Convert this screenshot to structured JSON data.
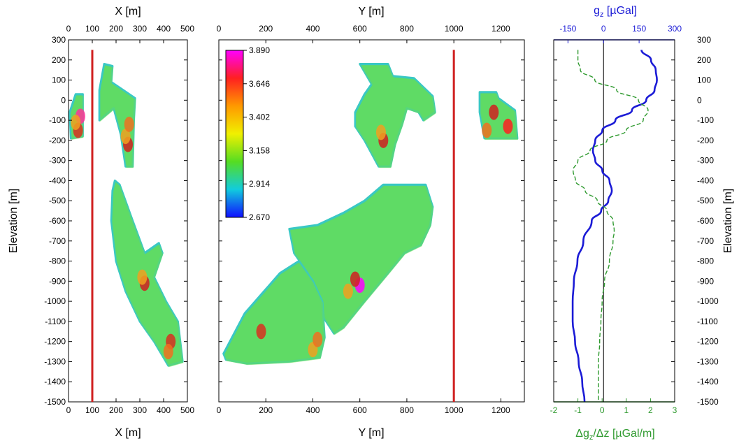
{
  "chart_data": [
    {
      "type": "scatter",
      "panel": "X section",
      "xlabel_top": "X [m]",
      "xlabel_bottom": "X [m]",
      "ylabel": "Elevation [m]",
      "xlim": [
        0,
        500
      ],
      "ylim": [
        -1500,
        300
      ],
      "x_ticks": [
        "0",
        "100",
        "200",
        "300",
        "400",
        "500"
      ],
      "y_ticks": [
        "300",
        "200",
        "100",
        "0",
        "-100",
        "-200",
        "-300",
        "-400",
        "-500",
        "-600",
        "-700",
        "-800",
        "-900",
        "-1000",
        "-1100",
        "-1200",
        "-1300",
        "-1400",
        "-1500"
      ],
      "borehole": {
        "x": 100,
        "y": [
          250,
          -1500
        ],
        "color": "#d02020"
      },
      "bodies": [
        {
          "outline": [
            [
              30,
              30
            ],
            [
              60,
              30
            ],
            [
              60,
              -180
            ],
            [
              10,
              -190
            ],
            [
              5,
              -60
            ]
          ],
          "hot": [
            [
              50,
              -80,
              "#ff3399"
            ],
            [
              40,
              -150,
              "#d83020"
            ],
            [
              30,
              -110,
              "#f0a020"
            ]
          ]
        },
        {
          "outline": [
            [
              150,
              180
            ],
            [
              185,
              170
            ],
            [
              180,
              90
            ],
            [
              230,
              50
            ],
            [
              280,
              10
            ],
            [
              275,
              -100
            ],
            [
              270,
              -330
            ],
            [
              240,
              -330
            ],
            [
              220,
              -170
            ],
            [
              190,
              -40
            ],
            [
              130,
              -100
            ],
            [
              130,
              50
            ]
          ],
          "hot": [
            [
              250,
              -220,
              "#d02020"
            ],
            [
              240,
              -180,
              "#f0a020"
            ],
            [
              255,
              -120,
              "#f07020"
            ]
          ]
        },
        {
          "outline": [
            [
              195,
              -400
            ],
            [
              215,
              -420
            ],
            [
              270,
              -600
            ],
            [
              320,
              -760
            ],
            [
              380,
              -710
            ],
            [
              395,
              -760
            ],
            [
              360,
              -880
            ],
            [
              410,
              -1000
            ],
            [
              460,
              -1100
            ],
            [
              480,
              -1300
            ],
            [
              420,
              -1320
            ],
            [
              360,
              -1200
            ],
            [
              300,
              -1100
            ],
            [
              240,
              -950
            ],
            [
              200,
              -800
            ],
            [
              180,
              -600
            ],
            [
              185,
              -450
            ]
          ],
          "hot": [
            [
              320,
              -910,
              "#d02020"
            ],
            [
              310,
              -880,
              "#f0a020"
            ],
            [
              430,
              -1200,
              "#d83020"
            ],
            [
              420,
              -1250,
              "#f07020"
            ]
          ]
        }
      ]
    },
    {
      "type": "scatter",
      "panel": "Y section",
      "xlabel_top": "Y [m]",
      "xlabel_bottom": "Y [m]",
      "xlim": [
        0,
        1300
      ],
      "ylim": [
        -1500,
        300
      ],
      "x_ticks": [
        "0",
        "200",
        "400",
        "600",
        "800",
        "1000",
        "1200"
      ],
      "borehole": {
        "x": 1000,
        "y": [
          250,
          -1500
        ],
        "color": "#d02020"
      },
      "colorbar": {
        "ticks": [
          "3.890",
          "3.646",
          "3.402",
          "3.158",
          "2.914",
          "2.670"
        ],
        "colors": [
          "#ff00ff",
          "#ff2020",
          "#ff9900",
          "#f0f000",
          "#55dd22",
          "#11ccdd",
          "#1010ff"
        ]
      },
      "bodies": [
        {
          "outline": [
            [
              600,
              180
            ],
            [
              720,
              180
            ],
            [
              740,
              120
            ],
            [
              830,
              110
            ],
            [
              910,
              20
            ],
            [
              920,
              -60
            ],
            [
              870,
              -100
            ],
            [
              850,
              -60
            ],
            [
              800,
              -40
            ],
            [
              780,
              -120
            ],
            [
              750,
              -220
            ],
            [
              730,
              -330
            ],
            [
              680,
              -330
            ],
            [
              620,
              -200
            ],
            [
              580,
              -130
            ],
            [
              580,
              -60
            ],
            [
              620,
              30
            ],
            [
              650,
              80
            ]
          ],
          "hot": [
            [
              700,
              -200,
              "#d02020"
            ],
            [
              690,
              -160,
              "#f0a020"
            ]
          ]
        },
        {
          "outline": [
            [
              1110,
              40
            ],
            [
              1180,
              40
            ],
            [
              1190,
              10
            ],
            [
              1260,
              -50
            ],
            [
              1270,
              -190
            ],
            [
              1130,
              -190
            ],
            [
              1110,
              -60
            ]
          ],
          "hot": [
            [
              1170,
              -60,
              "#d02020"
            ],
            [
              1230,
              -130,
              "#ff2020"
            ],
            [
              1140,
              -150,
              "#f07020"
            ]
          ]
        },
        {
          "outline": [
            [
              700,
              -420
            ],
            [
              880,
              -420
            ],
            [
              910,
              -530
            ],
            [
              900,
              -620
            ],
            [
              860,
              -720
            ],
            [
              790,
              -760
            ],
            [
              720,
              -860
            ],
            [
              620,
              -1000
            ],
            [
              530,
              -1130
            ],
            [
              490,
              -1160
            ],
            [
              440,
              -1070
            ],
            [
              380,
              -860
            ],
            [
              320,
              -760
            ],
            [
              300,
              -640
            ],
            [
              420,
              -620
            ],
            [
              530,
              -560
            ],
            [
              620,
              -500
            ]
          ],
          "hot": [
            [
              600,
              -920,
              "#ff00ff"
            ],
            [
              580,
              -890,
              "#d02020"
            ],
            [
              550,
              -950,
              "#f0a020"
            ]
          ]
        },
        {
          "outline": [
            [
              20,
              -1260
            ],
            [
              110,
              -1060
            ],
            [
              260,
              -860
            ],
            [
              340,
              -800
            ],
            [
              400,
              -900
            ],
            [
              440,
              -1000
            ],
            [
              450,
              -1180
            ],
            [
              430,
              -1280
            ],
            [
              300,
              -1300
            ],
            [
              120,
              -1310
            ],
            [
              30,
              -1290
            ]
          ],
          "hot": [
            [
              180,
              -1150,
              "#d83020"
            ],
            [
              400,
              -1240,
              "#f0a020"
            ],
            [
              420,
              -1190,
              "#f07020"
            ]
          ]
        }
      ]
    },
    {
      "type": "line",
      "panel": "Gravity profile",
      "ylabel_right": "Elevation [m]",
      "ylim": [
        -1500,
        300
      ],
      "top_axis": {
        "label": "gz [µGal]",
        "lim": [
          -210,
          300
        ],
        "ticks": [
          "-150",
          "0",
          "150",
          "300"
        ],
        "color": "#1b1bd6"
      },
      "bottom_axis": {
        "label": "Δgz/Δz [µGal/m]",
        "lim": [
          -2,
          3
        ],
        "ticks": [
          "-2",
          "-1",
          "0",
          "1",
          "2",
          "3"
        ],
        "color": "#2f9a2f"
      },
      "series": [
        {
          "axis": "top",
          "style": "solid",
          "color": "#1b1bd6",
          "x": [
            160,
            200,
            220,
            225,
            215,
            180,
            120,
            50,
            -5,
            -35,
            -45,
            -35,
            -5,
            25,
            35,
            20,
            -10,
            -50,
            -85,
            -110,
            -125,
            -130,
            -130,
            -120,
            -105,
            -90,
            -80
          ],
          "y": [
            250,
            200,
            150,
            100,
            50,
            0,
            -50,
            -100,
            -150,
            -200,
            -250,
            -300,
            -350,
            -400,
            -450,
            -500,
            -550,
            -600,
            -700,
            -800,
            -900,
            -1000,
            -1100,
            -1200,
            -1300,
            -1400,
            -1500
          ]
        },
        {
          "axis": "bottom",
          "style": "dashed",
          "color": "#2f9a2f",
          "x": [
            -1.0,
            -1.0,
            -0.9,
            -0.3,
            0.6,
            1.5,
            1.9,
            1.7,
            1.0,
            0.2,
            -0.5,
            -1.0,
            -1.2,
            -1.1,
            -0.7,
            -0.2,
            0.2,
            0.45,
            0.5,
            0.45,
            0.3,
            0.1,
            0.0,
            -0.05,
            -0.1,
            -0.15,
            -0.15,
            -0.15,
            -0.15
          ],
          "y": [
            250,
            200,
            150,
            100,
            50,
            0,
            -50,
            -100,
            -150,
            -200,
            -250,
            -300,
            -350,
            -400,
            -450,
            -500,
            -550,
            -600,
            -650,
            -700,
            -800,
            -900,
            -1000,
            -1100,
            -1200,
            -1300,
            -1400,
            -1450,
            -1500
          ]
        }
      ]
    }
  ]
}
